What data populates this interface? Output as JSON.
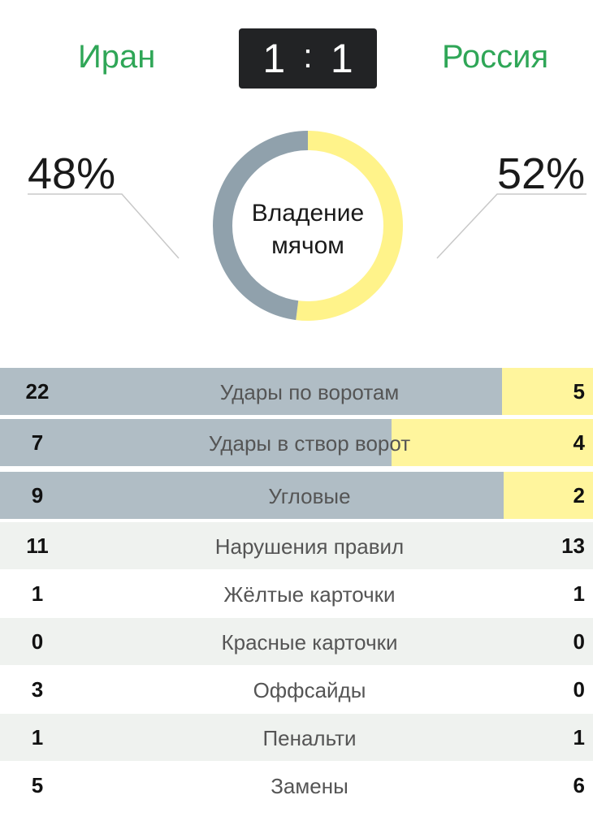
{
  "match": {
    "team_left": "Иран",
    "team_right": "Россия",
    "score_left": "1",
    "score_sep": ":",
    "score_right": "1"
  },
  "possession": {
    "left_pct": 48,
    "right_pct": 52,
    "left_label": "48%",
    "right_label": "52%",
    "center_label_line1": "Владение",
    "center_label_line2": "мячом",
    "colors": {
      "left": "#90a1ac",
      "right": "#fff38a"
    }
  },
  "stats": [
    {
      "label": "Удары по воротам",
      "left": "22",
      "right": "5",
      "bar_fraction": 0.846
    },
    {
      "label": "Удары в створ ворот",
      "left": "7",
      "right": "4",
      "bar_fraction": 0.66
    },
    {
      "label": "Угловые",
      "left": "9",
      "right": "2",
      "bar_fraction": 0.849
    },
    {
      "label": "Нарушения правил",
      "left": "11",
      "right": "13"
    },
    {
      "label": "Жёлтые карточки",
      "left": "1",
      "right": "1"
    },
    {
      "label": "Красные карточки",
      "left": "0",
      "right": "0"
    },
    {
      "label": "Оффсайды",
      "left": "3",
      "right": "0"
    },
    {
      "label": "Пенальти",
      "left": "1",
      "right": "1"
    },
    {
      "label": "Замены",
      "left": "5",
      "right": "6"
    }
  ]
}
